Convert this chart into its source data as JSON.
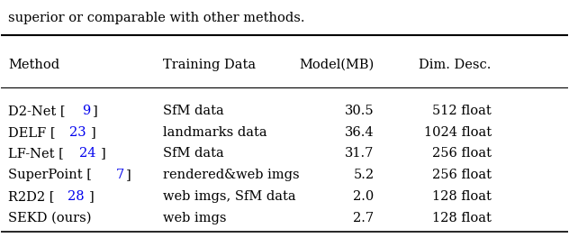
{
  "header_text": "superior or comparable with other methods.",
  "columns": [
    "Method",
    "Training Data",
    "Model(MB)",
    "Dim. Desc."
  ],
  "method_parts": [
    {
      "prefix": "D2-Net [",
      "cite": "9",
      "suffix": "]"
    },
    {
      "prefix": "DELF [",
      "cite": "23",
      "suffix": "]"
    },
    {
      "prefix": "LF-Net [",
      "cite": "24",
      "suffix": "]"
    },
    {
      "prefix": "SuperPoint [",
      "cite": "7",
      "suffix": "]"
    },
    {
      "prefix": "R2D2 [",
      "cite": "28",
      "suffix": "]"
    },
    {
      "prefix": "SEKD (ours)",
      "cite": "",
      "suffix": ""
    }
  ],
  "training_data": [
    "SfM data",
    "landmarks data",
    "SfM data",
    "rendered&web imgs",
    "web imgs, SfM data",
    "web imgs"
  ],
  "model_mb": [
    "30.5",
    "36.4",
    "31.7",
    "5.2",
    "2.0",
    "2.7"
  ],
  "dim_desc": [
    "512 float",
    "1024 float",
    "256 float",
    "256 float",
    "128 float",
    "128 float"
  ],
  "citation_color": "#0000ee",
  "text_color": "#000000",
  "background_color": "#FFFFFF",
  "fontsize": 10.5,
  "font_family": "DejaVu Serif"
}
